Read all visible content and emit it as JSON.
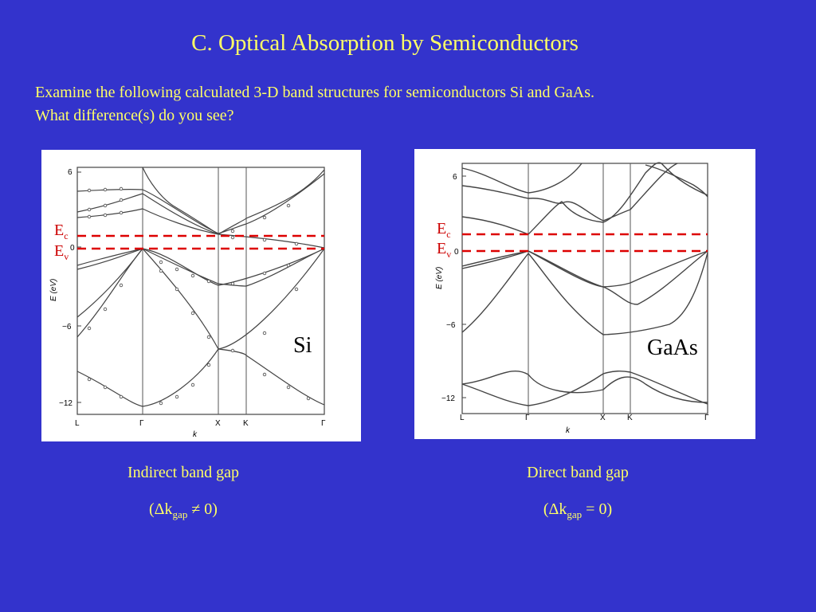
{
  "slide": {
    "title": "C. Optical Absorption by Semiconductors",
    "question_line1": "Examine the following calculated 3-D band structures for semiconductors Si and GaAs.",
    "question_line2": "What difference(s) do you see?"
  },
  "si": {
    "material": "Si",
    "ec_label": "E",
    "ec_sub": "c",
    "ev_label": "E",
    "ev_sub": "v",
    "yaxis_label": "E (eV)",
    "xaxis_label": "k",
    "yticks": [
      "6",
      "0",
      "−6",
      "−12"
    ],
    "kpoints": [
      "L",
      "Γ",
      "X",
      "K",
      "Γ"
    ],
    "caption": "Indirect band gap",
    "formula_prefix": "(Δk",
    "formula_sub": "gap",
    "formula_suffix": " ≠ 0)"
  },
  "gaas": {
    "material": "GaAs",
    "ec_label": "E",
    "ec_sub": "c",
    "ev_label": "E",
    "ev_sub": "v",
    "yaxis_label": "E (eV)",
    "xaxis_label": "k",
    "yticks": [
      "6",
      "0",
      "−6",
      "−12"
    ],
    "kpoints": [
      "L",
      "Γ",
      "X",
      "K",
      "Γ"
    ],
    "caption": "Direct band gap",
    "formula_prefix": "(Δk",
    "formula_sub": "gap",
    "formula_suffix": " = 0)"
  },
  "colors": {
    "background": "#3333cc",
    "text": "#ffff66",
    "band_edge_dash": "#dd0000",
    "band_line": "#333333"
  }
}
